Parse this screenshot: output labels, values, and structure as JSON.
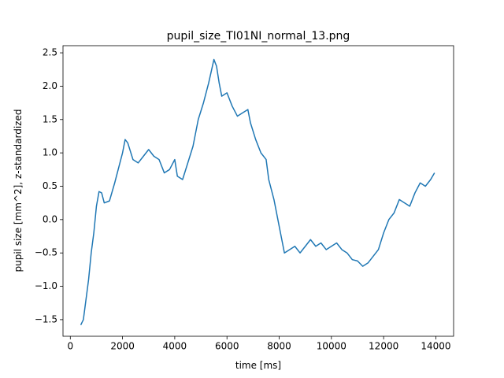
{
  "chart_data": {
    "type": "line",
    "title": "pupil_size_TI01NI_normal_13.png",
    "xlabel": "time [ms]",
    "ylabel": "pupil size [mm^2], z-standardized",
    "x": [
      400,
      500,
      600,
      700,
      800,
      900,
      1000,
      1100,
      1200,
      1300,
      1500,
      1700,
      1900,
      2000,
      2100,
      2200,
      2400,
      2600,
      2800,
      3000,
      3200,
      3400,
      3600,
      3800,
      4000,
      4100,
      4300,
      4500,
      4700,
      4900,
      5100,
      5300,
      5500,
      5600,
      5700,
      5800,
      6000,
      6200,
      6400,
      6600,
      6800,
      6900,
      7100,
      7300,
      7500,
      7600,
      7800,
      8000,
      8100,
      8200,
      8400,
      8600,
      8800,
      9000,
      9200,
      9400,
      9600,
      9800,
      10000,
      10200,
      10400,
      10600,
      10800,
      11000,
      11200,
      11400,
      11600,
      11800,
      12000,
      12200,
      12400,
      12600,
      12800,
      13000,
      13200,
      13400,
      13600,
      13800,
      13950
    ],
    "series": [
      {
        "name": "pupil size",
        "color": "#1f77b4",
        "values": [
          -1.58,
          -1.5,
          -1.2,
          -0.9,
          -0.5,
          -0.2,
          0.2,
          0.42,
          0.4,
          0.25,
          0.28,
          0.55,
          0.85,
          1.0,
          1.2,
          1.15,
          0.9,
          0.85,
          0.95,
          1.05,
          0.95,
          0.9,
          0.7,
          0.75,
          0.9,
          0.65,
          0.6,
          0.85,
          1.1,
          1.5,
          1.75,
          2.05,
          2.4,
          2.3,
          2.05,
          1.85,
          1.9,
          1.7,
          1.55,
          1.6,
          1.65,
          1.45,
          1.2,
          1.0,
          0.9,
          0.6,
          0.3,
          -0.1,
          -0.3,
          -0.5,
          -0.45,
          -0.4,
          -0.5,
          -0.4,
          -0.3,
          -0.4,
          -0.35,
          -0.45,
          -0.4,
          -0.35,
          -0.45,
          -0.5,
          -0.6,
          -0.62,
          -0.7,
          -0.65,
          -0.55,
          -0.45,
          -0.2,
          0.0,
          0.1,
          0.3,
          0.25,
          0.2,
          0.4,
          0.55,
          0.5,
          0.6,
          0.7
        ]
      }
    ],
    "xlim": [
      -280,
      14680
    ],
    "ylim": [
      -1.749,
      2.607
    ],
    "xticks": [
      0,
      2000,
      4000,
      6000,
      8000,
      10000,
      12000,
      14000
    ],
    "yticks": [
      {
        "value": -1.5,
        "label": "−1.5"
      },
      {
        "value": -1.0,
        "label": "−1.0"
      },
      {
        "value": -0.5,
        "label": "−0.5"
      },
      {
        "value": 0,
        "label": "0.0"
      },
      {
        "value": 0.5,
        "label": "0.5"
      },
      {
        "value": 1.0,
        "label": "1.0"
      },
      {
        "value": 1.5,
        "label": "1.5"
      },
      {
        "value": 2.0,
        "label": "2.0"
      },
      {
        "value": 2.5,
        "label": "2.5"
      }
    ]
  }
}
